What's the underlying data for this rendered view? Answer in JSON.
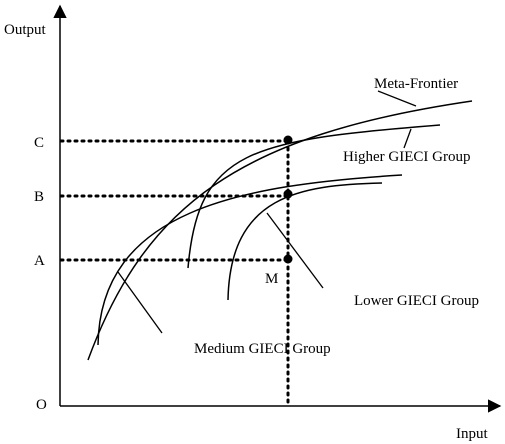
{
  "axes": {
    "y_label": "Output",
    "x_label": "Input",
    "origin_label": "O"
  },
  "levels": {
    "c": "C",
    "b": "B",
    "a": "A"
  },
  "points": {
    "m_label": "M"
  },
  "curves": {
    "meta": "Meta-Frontier",
    "higher": "Higher GIECI Group",
    "lower": "Lower GIECI Group",
    "medium": "Medium GIECI Group"
  },
  "colors": {
    "ink": "#000000",
    "background": "#ffffff"
  }
}
